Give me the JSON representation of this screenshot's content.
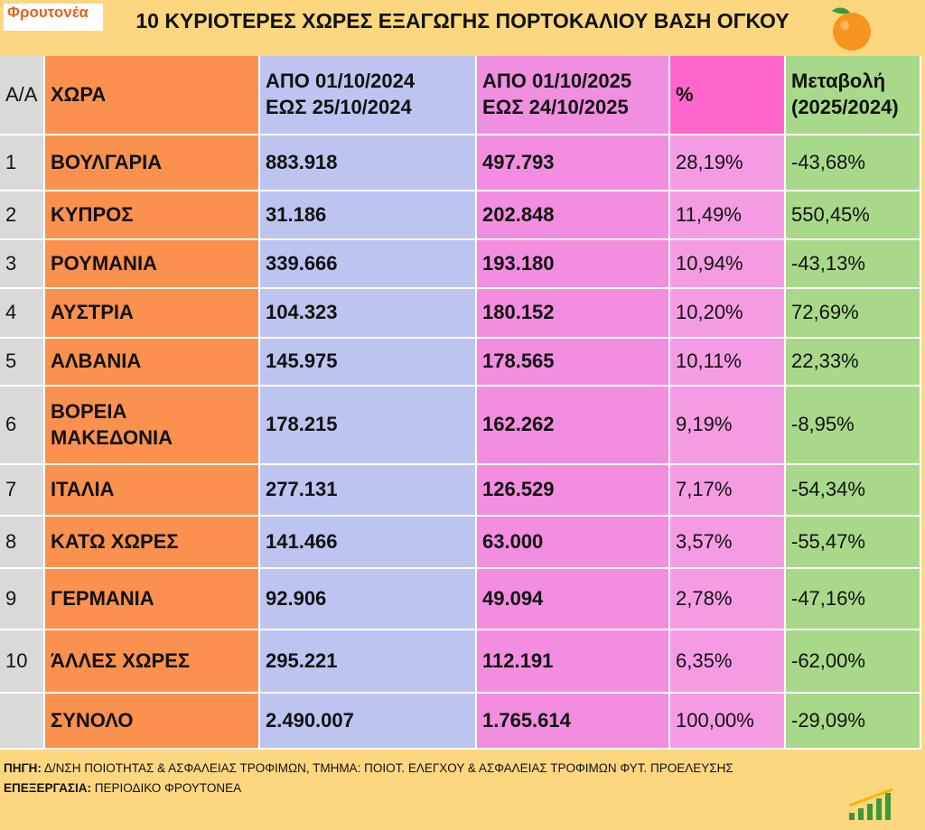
{
  "header": {
    "logo": "Φρουτονέα",
    "title": "10 ΚΥΡΙΟΤΕΡΕΣ ΧΩΡΕΣ ΕΞΑΓΩΓΗΣ ΠΟΡΤΟΚΑΛΙΟΥ ΒΑΣΗ ΟΓΚΟΥ"
  },
  "table": {
    "columns": [
      [
        "Α/Α"
      ],
      [
        "ΧΩΡΑ"
      ],
      [
        "ΑΠΟ 01/10/2024",
        "ΕΩΣ  25/10/2024"
      ],
      [
        "ΑΠΟ 01/10/2025",
        "ΕΩΣ  24/10/2025"
      ],
      [
        "%"
      ],
      [
        "Μεταβολή",
        "(2025/2024)"
      ]
    ],
    "rows": [
      [
        "1",
        [
          "ΒΟΥΛΓΑΡΙΑ"
        ],
        "883.918",
        "497.793",
        "28,19%",
        "-43,68%"
      ],
      [
        "2",
        [
          "ΚΥΠΡΟΣ"
        ],
        "31.186",
        "202.848",
        "11,49%",
        "550,45%"
      ],
      [
        "3",
        [
          "ΡΟΥΜΑΝΙΑ"
        ],
        "339.666",
        "193.180",
        "10,94%",
        "-43,13%"
      ],
      [
        "4",
        [
          "ΑΥΣΤΡΙΑ"
        ],
        "104.323",
        "180.152",
        "10,20%",
        "72,69%"
      ],
      [
        "5",
        [
          "ΑΛΒΑΝΙΑ"
        ],
        "145.975",
        "178.565",
        "10,11%",
        "22,33%"
      ],
      [
        "6",
        [
          "ΒΟΡΕΙΑ",
          "ΜΑΚΕΔΟΝΙΑ"
        ],
        "178.215",
        "162.262",
        "9,19%",
        "-8,95%"
      ],
      [
        "7",
        [
          "ΙΤΑΛΙΑ"
        ],
        "277.131",
        "126.529",
        "7,17%",
        "-54,34%"
      ],
      [
        "8",
        [
          "ΚΑΤΩ ΧΩΡΕΣ"
        ],
        "141.466",
        "63.000",
        "3,57%",
        "-55,47%"
      ],
      [
        "9",
        [
          "ΓΕΡΜΑΝΙΑ"
        ],
        "92.906",
        "49.094",
        "2,78%",
        "-47,16%"
      ],
      [
        "10",
        [
          "ΆΛΛΕΣ ΧΩΡΕΣ"
        ],
        "295.221",
        "112.191",
        "6,35%",
        "-62,00%"
      ]
    ],
    "total": {
      "label": "ΣΥΝΟΛΟ",
      "v2024": "2.490.007",
      "v2025": "1.765.614",
      "pct": "100,00%",
      "change": "-29,09%"
    }
  },
  "footer": {
    "source_label": "ΠΗΓΗ:",
    "source": "Δ/ΝΣΗ ΠΟΙΟΤΗΤΑΣ & ΑΣΦΑΛΕΙΑΣ ΤΡΟΦΙΜΩΝ, ΤΜΗΜΑ: ΠΟΙΟΤ. ΕΛΕΓΧΟΥ & ΑΣΦΑΛΕΙΑΣ ΤΡΟΦΙΜΩΝ ΦΥΤ. ΠΡΟΕΛΕΥΣΗΣ",
    "processing_label": "ΕΠΕΞΕΡΓΑΣΙΑ:",
    "processing": "ΠΕΡΙΟΔΙΚΟ ΦΡΟΥΤΟΝΕΑ"
  }
}
